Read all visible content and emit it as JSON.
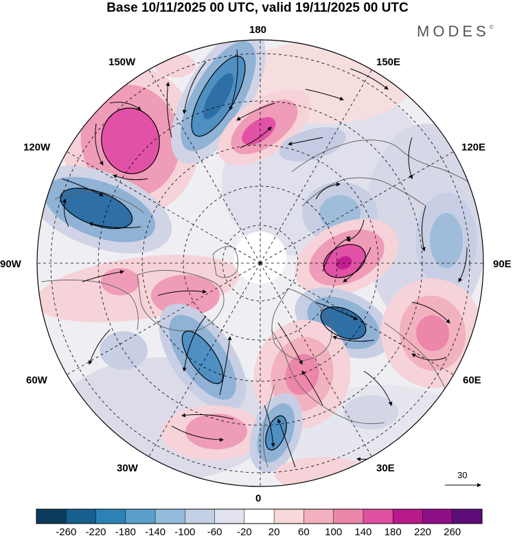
{
  "title": "Base 10/11/2025 00 UTC, valid 19/11/2025 00 UTC",
  "brand": {
    "name": "MODES",
    "mark": "©"
  },
  "map": {
    "projection": "polar-stereographic-north",
    "longitude_labels": {
      "lon_180": "180",
      "lon_150W": "150W",
      "lon_150E": "150E",
      "lon_120W": "120W",
      "lon_120E": "120E",
      "lon_90W": "90W",
      "lon_90E": "90E",
      "lon_60W": "60W",
      "lon_60E": "60E",
      "lon_30W": "30W",
      "lon_30E": "30E",
      "lon_0": "0"
    },
    "vector_scale": {
      "label": "30"
    }
  },
  "colorbar": {
    "ticks": [
      "-260",
      "-220",
      "-180",
      "-140",
      "-100",
      "-60",
      "-20",
      "20",
      "60",
      "100",
      "140",
      "180",
      "220",
      "260"
    ],
    "colors": [
      "#0d3b5e",
      "#15608f",
      "#2b82b6",
      "#5a9fcb",
      "#93bcdc",
      "#c2cfe4",
      "#e2e2ee",
      "#ffffff",
      "#f8d8d8",
      "#f2b1bf",
      "#ec86ab",
      "#e04fa0",
      "#b81a8c",
      "#8e0f86",
      "#5c0d78"
    ]
  },
  "colors": {
    "neg_strong": "#2e6fa5",
    "neg_mid": "#8fb2d5",
    "neg_weak": "#d0d4e6",
    "pos_weak": "#f6d3d8",
    "pos_mid": "#ef9cb8",
    "pos_strong": "#e152a6",
    "pos_max": "#c01f8f",
    "land_outline": "#666666"
  }
}
